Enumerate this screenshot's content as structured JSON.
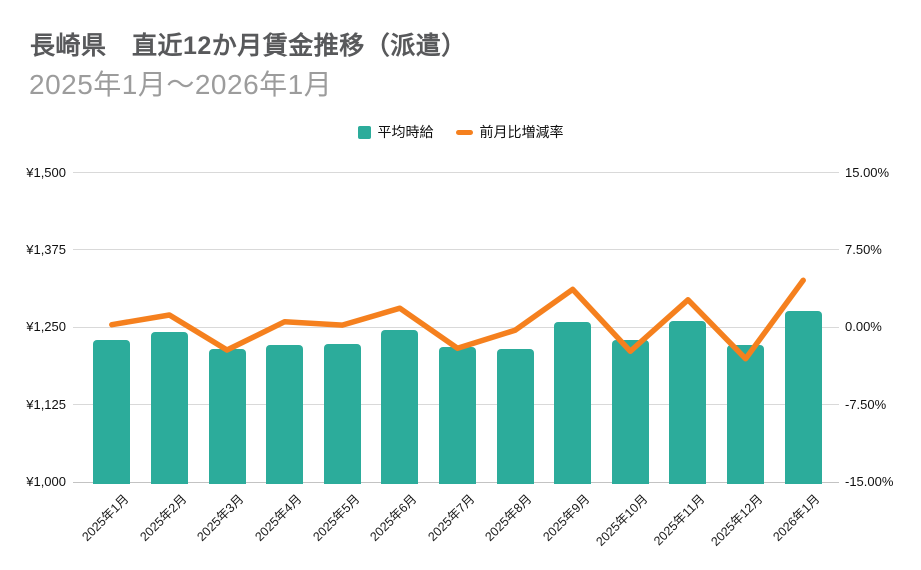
{
  "header": {
    "title": "長崎県　直近12か月賃金推移（派遣）",
    "subtitle": "2025年1月～2026年1月"
  },
  "legend": {
    "items": [
      {
        "label": "平均時給",
        "marker": "square",
        "color": "#2cac9b"
      },
      {
        "label": "前月比増減率",
        "marker": "line",
        "color": "#f5801e"
      }
    ]
  },
  "colors": {
    "bar": "#2cac9b",
    "line": "#f5801e",
    "grid": "#d9d9d9",
    "title_text": "#58595b",
    "subtitle_text": "#9c9c9c"
  },
  "chart_data": {
    "type": "bar",
    "title": "長崎県 直近12か月賃金推移（派遣）",
    "subtitle": "2025年1月～2026年1月",
    "categories": [
      "2025年1月",
      "2025年2月",
      "2025年3月",
      "2025年4月",
      "2025年5月",
      "2025年6月",
      "2025年7月",
      "2025年8月",
      "2025年9月",
      "2025年10月",
      "2025年11月",
      "2025年12月",
      "2026年1月"
    ],
    "series": [
      {
        "name": "平均時給",
        "type": "bar",
        "axis": "left",
        "unit": "yen",
        "values": [
          1228,
          1242,
          1214,
          1220,
          1222,
          1244,
          1218,
          1214,
          1258,
          1228,
          1260,
          1221,
          1276
        ]
      },
      {
        "name": "前月比増減率",
        "type": "line",
        "axis": "right",
        "unit": "%",
        "values": [
          0.2,
          1.14,
          -2.25,
          0.49,
          0.16,
          1.8,
          -2.09,
          -0.33,
          3.62,
          -2.38,
          2.61,
          -3.1,
          4.5
        ]
      }
    ],
    "left_axis": {
      "min": 1000,
      "max": 1500,
      "ticks": [
        "¥1,500",
        "¥1,375",
        "¥1,250",
        "¥1,125",
        "¥1,000"
      ]
    },
    "right_axis": {
      "min": -15,
      "max": 15,
      "ticks": [
        "15.00%",
        "7.50%",
        "0.00%",
        "-7.50%",
        "-15.00%"
      ]
    },
    "grid": true,
    "legend_position": "top",
    "x_label_rotation": -45
  }
}
